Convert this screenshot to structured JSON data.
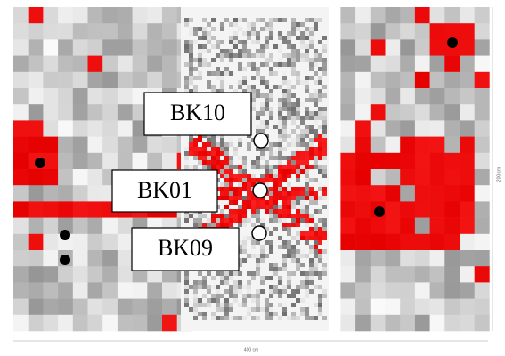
{
  "markers": [
    {
      "label": "BK10"
    },
    {
      "label": "BK01"
    },
    {
      "label": "BK09"
    }
  ],
  "dimensions": {
    "width": "400 cm",
    "height": "200 cm"
  }
}
